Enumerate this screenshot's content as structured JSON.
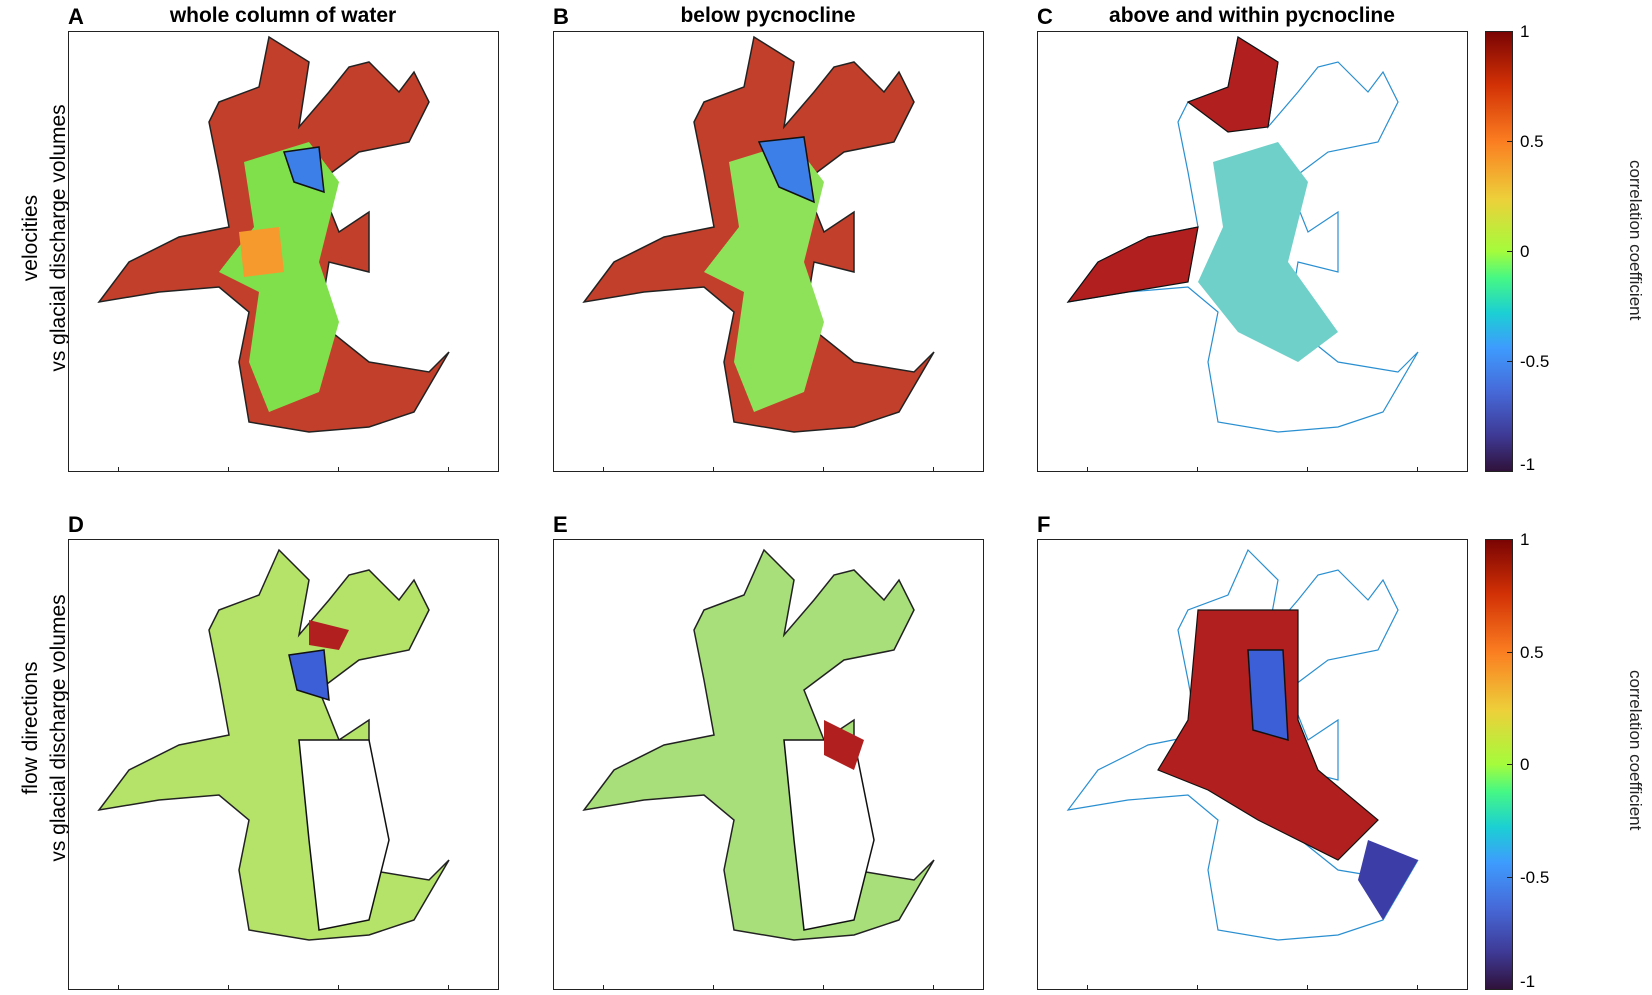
{
  "figure": {
    "row_labels": [
      {
        "line1": "velocities",
        "line2": "vs glacial discharge volumes"
      },
      {
        "line1": "flow directions",
        "line2": "vs glacial discharge volumes"
      }
    ],
    "colorbar": {
      "label": "correlation  coefficient",
      "ticks": [
        "1",
        "0.5",
        "0",
        "-0.5",
        "-1"
      ]
    }
  },
  "chart_data": [
    {
      "type": "heatmap",
      "panel": "A",
      "title": "whole column of water",
      "row": "velocities vs glacial discharge volumes",
      "value_range": [
        -1,
        1
      ],
      "colormap": "turbo"
    },
    {
      "type": "heatmap",
      "panel": "B",
      "title": "below pycnocline",
      "row": "velocities vs glacial discharge volumes",
      "value_range": [
        -1,
        1
      ],
      "colormap": "turbo"
    },
    {
      "type": "heatmap",
      "panel": "C",
      "title": "above and within pycnocline",
      "row": "velocities vs glacial discharge volumes",
      "value_range": [
        -1,
        1
      ],
      "colormap": "turbo"
    },
    {
      "type": "heatmap",
      "panel": "D",
      "title": "",
      "row": "flow directions vs glacial discharge volumes",
      "value_range": [
        -1,
        1
      ],
      "colormap": "turbo"
    },
    {
      "type": "heatmap",
      "panel": "E",
      "title": "",
      "row": "flow directions vs glacial discharge volumes",
      "value_range": [
        -1,
        1
      ],
      "colormap": "turbo"
    },
    {
      "type": "heatmap",
      "panel": "F",
      "title": "",
      "row": "flow directions vs glacial discharge volumes",
      "value_range": [
        -1,
        1
      ],
      "colormap": "turbo"
    }
  ]
}
